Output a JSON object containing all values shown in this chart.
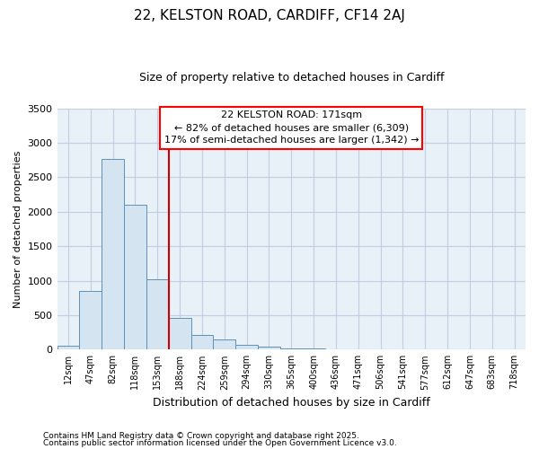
{
  "title1": "22, KELSTON ROAD, CARDIFF, CF14 2AJ",
  "title2": "Size of property relative to detached houses in Cardiff",
  "xlabel": "Distribution of detached houses by size in Cardiff",
  "ylabel": "Number of detached properties",
  "bin_labels": [
    "12sqm",
    "47sqm",
    "82sqm",
    "118sqm",
    "153sqm",
    "188sqm",
    "224sqm",
    "259sqm",
    "294sqm",
    "330sqm",
    "365sqm",
    "400sqm",
    "436sqm",
    "471sqm",
    "506sqm",
    "541sqm",
    "577sqm",
    "612sqm",
    "647sqm",
    "683sqm",
    "718sqm"
  ],
  "bar_values": [
    50,
    855,
    2760,
    2100,
    1025,
    460,
    210,
    145,
    65,
    40,
    20,
    20,
    0,
    0,
    0,
    0,
    0,
    0,
    0,
    0,
    0
  ],
  "bar_color": "#d4e4f0",
  "bar_edge_color": "#6090b8",
  "ylim": [
    0,
    3500
  ],
  "yticks": [
    0,
    500,
    1000,
    1500,
    2000,
    2500,
    3000,
    3500
  ],
  "annotation_text_line1": "22 KELSTON ROAD: 171sqm",
  "annotation_text_line2": "← 82% of detached houses are smaller (6,309)",
  "annotation_text_line3": "17% of semi-detached houses are larger (1,342) →",
  "vline_position": 4.5,
  "vline_color": "#cc0000",
  "footnote1": "Contains HM Land Registry data © Crown copyright and database right 2025.",
  "footnote2": "Contains public sector information licensed under the Open Government Licence v3.0.",
  "grid_color": "#c0d0e0",
  "bg_color": "#e8f0f8"
}
